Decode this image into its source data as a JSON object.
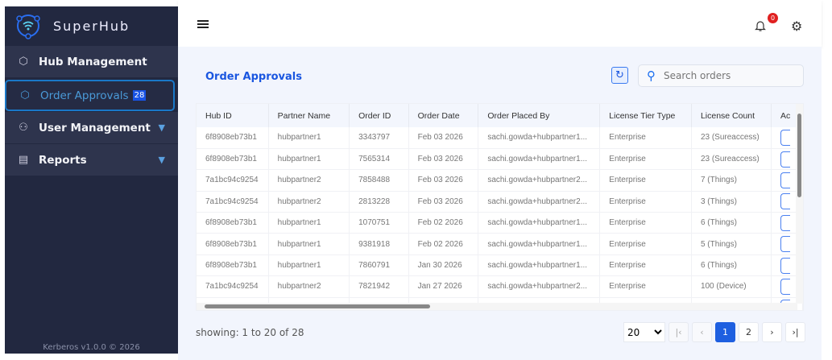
{
  "app": {
    "name": "SuperHub",
    "footer": "Kerberos v1.0.0 © 2026"
  },
  "sidebar": {
    "items": [
      {
        "label": "Hub Management",
        "icon": "cube-icon"
      },
      {
        "label": "Order Approvals",
        "badge": "28",
        "icon": "cube-clock-icon",
        "active": true
      },
      {
        "label": "User Management",
        "icon": "users-gear-icon",
        "expandable": true
      },
      {
        "label": "Reports",
        "icon": "report-icon",
        "expandable": true
      }
    ]
  },
  "header": {
    "notification_count": "0"
  },
  "main": {
    "title": "Order Approvals",
    "search_placeholder": "Search orders",
    "columns": [
      "Hub ID",
      "Partner Name",
      "Order ID",
      "Order Date",
      "Order Placed By",
      "License Tier Type",
      "License Count",
      "Ac"
    ],
    "rows": [
      [
        "6f8908eb73b1",
        "hubpartner1",
        "3343797",
        "Feb 03 2026",
        "sachi.gowda+hubpartner1...",
        "Enterprise",
        "23 (Sureaccess)"
      ],
      [
        "6f8908eb73b1",
        "hubpartner1",
        "7565314",
        "Feb 03 2026",
        "sachi.gowda+hubpartner1...",
        "Enterprise",
        "23 (Sureaccess)"
      ],
      [
        "7a1bc94c9254",
        "hubpartner2",
        "7858488",
        "Feb 03 2026",
        "sachi.gowda+hubpartner2...",
        "Enterprise",
        "7 (Things)"
      ],
      [
        "7a1bc94c9254",
        "hubpartner2",
        "2813228",
        "Feb 03 2026",
        "sachi.gowda+hubpartner2...",
        "Enterprise",
        "3 (Things)"
      ],
      [
        "6f8908eb73b1",
        "hubpartner1",
        "1070751",
        "Feb 02 2026",
        "sachi.gowda+hubpartner1...",
        "Enterprise",
        "6 (Things)"
      ],
      [
        "6f8908eb73b1",
        "hubpartner1",
        "9381918",
        "Feb 02 2026",
        "sachi.gowda+hubpartner1...",
        "Enterprise",
        "5 (Things)"
      ],
      [
        "6f8908eb73b1",
        "hubpartner1",
        "7860791",
        "Jan 30 2026",
        "sachi.gowda+hubpartner1...",
        "Enterprise",
        "6 (Things)"
      ],
      [
        "7a1bc94c9254",
        "hubpartner2",
        "7821942",
        "Jan 27 2026",
        "sachi.gowda+hubpartner2...",
        "Enterprise",
        "100 (Device)"
      ]
    ],
    "showing": "showing: 1 to 20 of 28",
    "page_size": "20",
    "pages": [
      "1",
      "2"
    ],
    "current_page": "1"
  },
  "colors": {
    "sidebar": "#222840",
    "accent": "#1e5fe0",
    "badge": "#e02020"
  }
}
